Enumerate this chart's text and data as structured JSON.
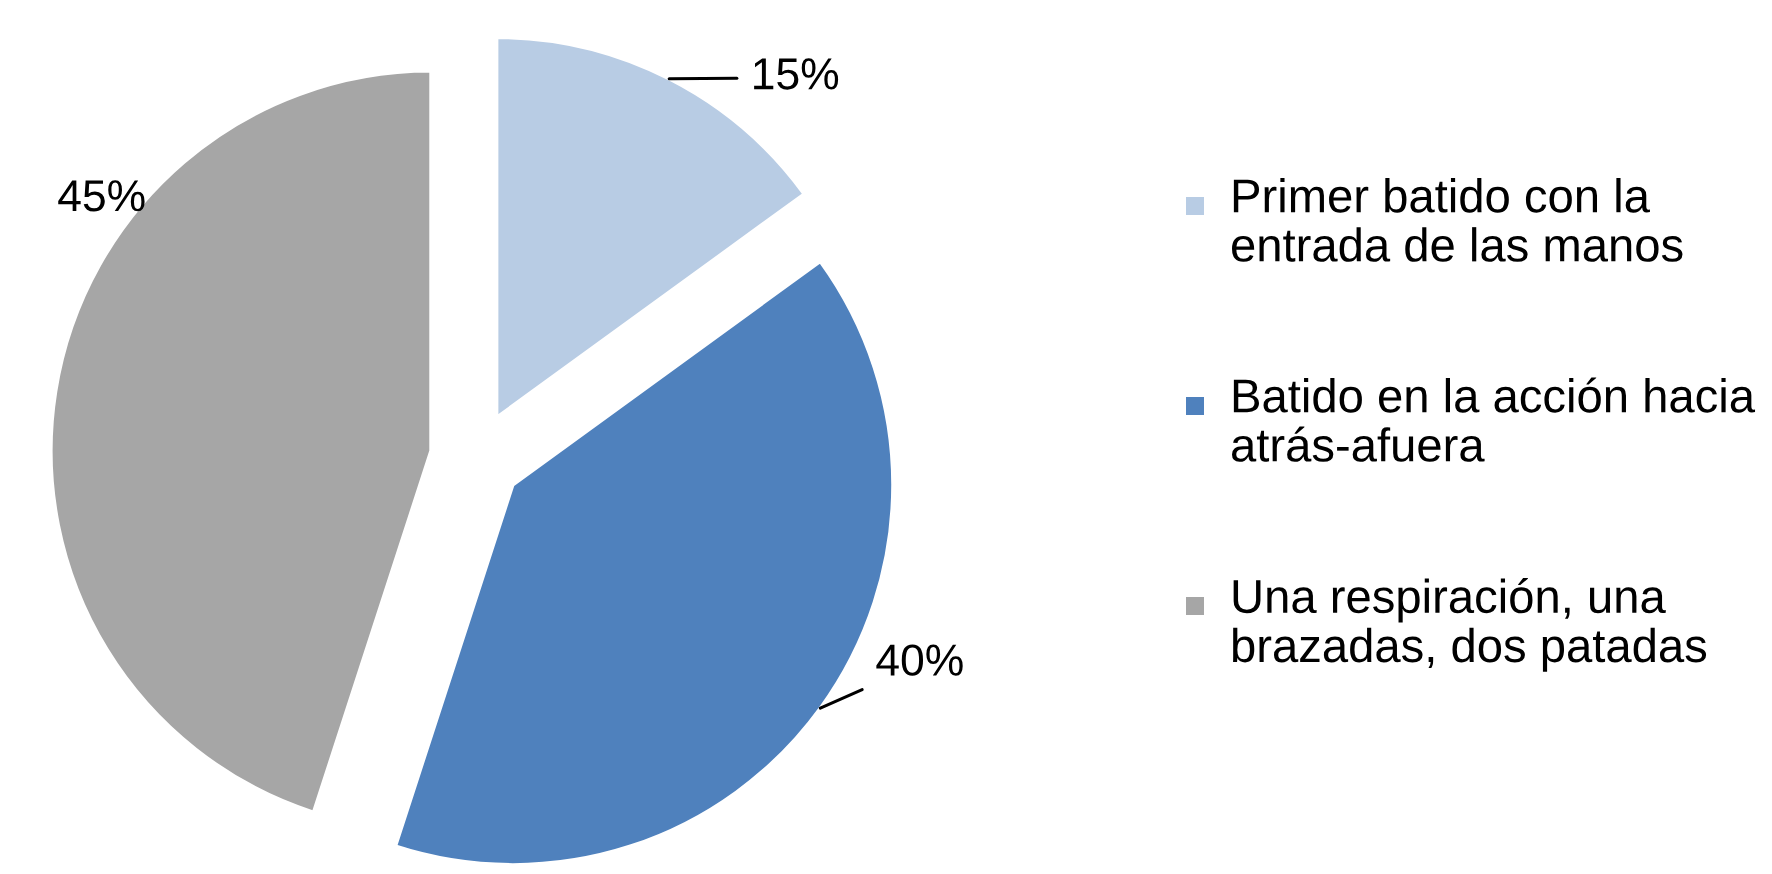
{
  "chart_data": {
    "type": "pie",
    "categories": [
      "Primer batido con la entrada de las manos",
      "Batido en la acción hacia atrás-afuera",
      "Una respiración, una brazadas, dos patadas"
    ],
    "values": [
      15,
      40,
      45
    ],
    "colors": [
      "#b8cce4",
      "#4f81bd",
      "#a6a6a6"
    ],
    "value_labels": [
      "15%",
      "40%",
      "45%"
    ],
    "legend": "right"
  }
}
